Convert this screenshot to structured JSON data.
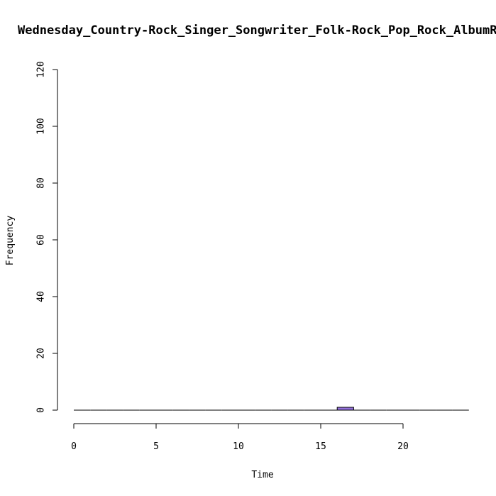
{
  "chart_data": {
    "type": "bar",
    "title": "Wednesday_Country-Rock_Singer_Songwriter_Folk-Rock_Pop_Rock_AlbumRock",
    "xlabel": "Time",
    "ylabel": "Frequency",
    "xlim": [
      0,
      24
    ],
    "ylim": [
      0,
      120
    ],
    "x_ticks": [
      0,
      5,
      10,
      15,
      20
    ],
    "y_ticks": [
      0,
      20,
      40,
      60,
      80,
      100,
      120
    ],
    "bin_width": 1,
    "bins": [
      {
        "start": 0,
        "end": 1,
        "count": 0
      },
      {
        "start": 1,
        "end": 2,
        "count": 0
      },
      {
        "start": 2,
        "end": 3,
        "count": 0
      },
      {
        "start": 3,
        "end": 4,
        "count": 0
      },
      {
        "start": 4,
        "end": 5,
        "count": 0
      },
      {
        "start": 5,
        "end": 6,
        "count": 0
      },
      {
        "start": 6,
        "end": 7,
        "count": 0
      },
      {
        "start": 7,
        "end": 8,
        "count": 0
      },
      {
        "start": 8,
        "end": 9,
        "count": 0
      },
      {
        "start": 9,
        "end": 10,
        "count": 0
      },
      {
        "start": 10,
        "end": 11,
        "count": 0
      },
      {
        "start": 11,
        "end": 12,
        "count": 0
      },
      {
        "start": 12,
        "end": 13,
        "count": 0
      },
      {
        "start": 13,
        "end": 14,
        "count": 0
      },
      {
        "start": 14,
        "end": 15,
        "count": 0
      },
      {
        "start": 15,
        "end": 16,
        "count": 0
      },
      {
        "start": 16,
        "end": 17,
        "count": 1
      },
      {
        "start": 17,
        "end": 18,
        "count": 0
      },
      {
        "start": 18,
        "end": 19,
        "count": 0
      },
      {
        "start": 19,
        "end": 20,
        "count": 0
      },
      {
        "start": 20,
        "end": 21,
        "count": 0
      },
      {
        "start": 21,
        "end": 22,
        "count": 0
      },
      {
        "start": 22,
        "end": 23,
        "count": 0
      },
      {
        "start": 23,
        "end": 24,
        "count": 0
      }
    ],
    "bar_color": "#9370DB",
    "grid": false
  }
}
